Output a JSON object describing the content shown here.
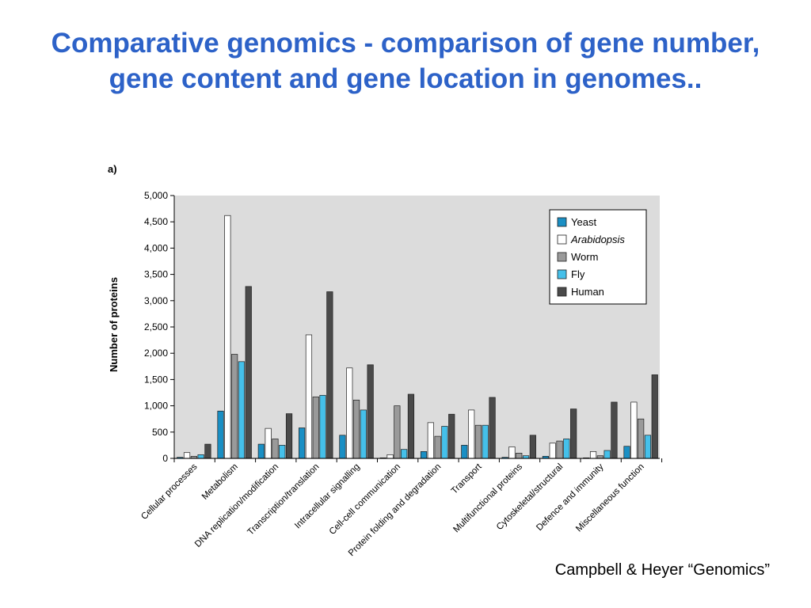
{
  "slide": {
    "title": "Comparative genomics - comparison of gene number, gene content and gene location in genomes..",
    "credit": "Campbell & Heyer “Genomics”"
  },
  "chart_data": {
    "type": "bar",
    "panel_label": "a)",
    "ylabel": "Number of proteins",
    "xlabel": "",
    "ylim": [
      0,
      5000
    ],
    "yticks": [
      0,
      500,
      1000,
      1500,
      2000,
      2500,
      3000,
      3500,
      4000,
      4500,
      5000
    ],
    "ytick_labels": [
      "0",
      "500",
      "1,000",
      "1,500",
      "2,000",
      "2,500",
      "3,000",
      "3,500",
      "4,000",
      "4,500",
      "5,000"
    ],
    "grid": false,
    "legend_position": "top-right",
    "categories": [
      "Cellular processes",
      "Metabolism",
      "DNA replication/modification",
      "Transcription/translation",
      "Intracellular signalling",
      "Cell-cell communication",
      "Protein folding and degradation",
      "Transport",
      "Multifunctional proteins",
      "Cytoskeletal/structural",
      "Defence and immunity",
      "Miscellaneous function"
    ],
    "series": [
      {
        "name": "Yeast",
        "italic": false,
        "color": "#1a8fc4",
        "values": [
          20,
          900,
          270,
          580,
          440,
          10,
          130,
          250,
          20,
          40,
          10,
          230
        ]
      },
      {
        "name": "Arabidopsis",
        "italic": true,
        "color": "#ffffff",
        "values": [
          110,
          4620,
          570,
          2350,
          1720,
          70,
          680,
          920,
          220,
          290,
          130,
          1070
        ]
      },
      {
        "name": "Worm",
        "italic": false,
        "color": "#9a9a9a",
        "values": [
          40,
          1980,
          370,
          1170,
          1110,
          1000,
          420,
          630,
          100,
          330,
          50,
          750
        ]
      },
      {
        "name": "Fly",
        "italic": false,
        "color": "#45c0ea",
        "values": [
          70,
          1840,
          250,
          1200,
          920,
          170,
          610,
          630,
          50,
          370,
          150,
          440
        ]
      },
      {
        "name": "Human",
        "italic": false,
        "color": "#4a4a4a",
        "values": [
          270,
          3270,
          850,
          3170,
          1780,
          1220,
          840,
          1160,
          440,
          940,
          1070,
          1590
        ]
      }
    ]
  }
}
